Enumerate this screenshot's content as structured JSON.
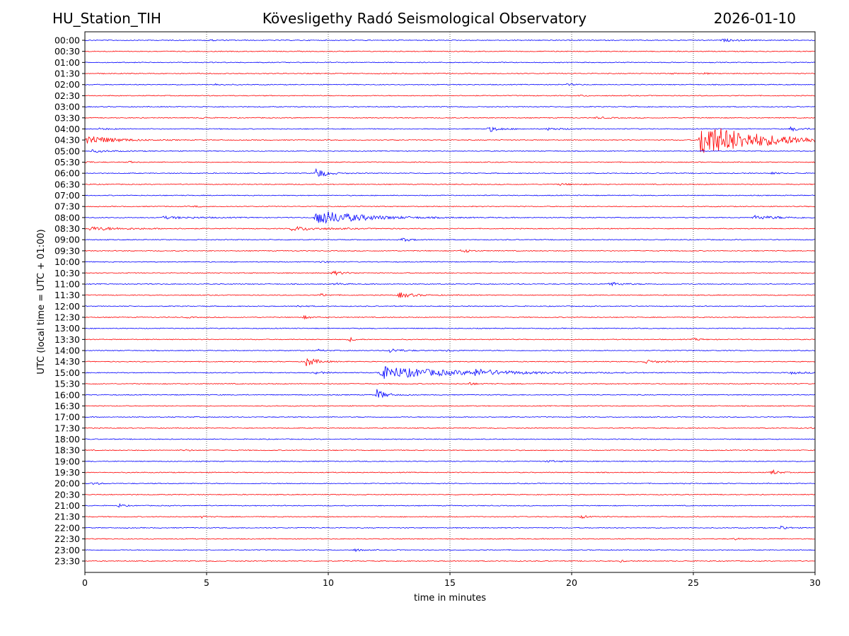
{
  "header": {
    "station": "HU_Station_TIH",
    "observatory": "Kövesligethy Radó Seismological Observatory",
    "date": "2026-01-10"
  },
  "chart_data": {
    "type": "line",
    "title": "Kövesligethy Radó Seismological Observatory",
    "xlabel": "time in minutes",
    "ylabel": "UTC (local time = UTC + 01:00)",
    "xlim": [
      0,
      30
    ],
    "x_ticks": [
      "0",
      "5",
      "10",
      "15",
      "20",
      "25",
      "30"
    ],
    "grid": "vertical dotted at every 5 minutes",
    "colors": {
      "even_rows": "#0000ff",
      "odd_rows": "#ff0000"
    },
    "rows": [
      "00:00",
      "00:30",
      "01:00",
      "01:30",
      "02:00",
      "02:30",
      "03:00",
      "03:30",
      "04:00",
      "04:30",
      "05:00",
      "05:30",
      "06:00",
      "06:30",
      "07:00",
      "07:30",
      "08:00",
      "08:30",
      "09:00",
      "09:30",
      "10:00",
      "10:30",
      "11:00",
      "11:30",
      "12:00",
      "12:30",
      "13:00",
      "13:30",
      "14:00",
      "14:30",
      "15:00",
      "15:30",
      "16:00",
      "16:30",
      "17:00",
      "17:30",
      "18:00",
      "18:30",
      "19:00",
      "19:30",
      "20:00",
      "20:30",
      "21:00",
      "21:30",
      "22:00",
      "22:30",
      "23:00",
      "23:30"
    ],
    "events": [
      {
        "row": 0,
        "minute": 5.0,
        "amp": 0.4,
        "dur": 0.6
      },
      {
        "row": 0,
        "minute": 26.2,
        "amp": 0.5,
        "dur": 1.2
      },
      {
        "row": 3,
        "minute": 24.0,
        "amp": 0.3,
        "dur": 0.3
      },
      {
        "row": 3,
        "minute": 25.4,
        "amp": 0.4,
        "dur": 0.3
      },
      {
        "row": 4,
        "minute": 5.3,
        "amp": 0.4,
        "dur": 0.6
      },
      {
        "row": 4,
        "minute": 19.8,
        "amp": 0.3,
        "dur": 0.8
      },
      {
        "row": 5,
        "minute": 20.3,
        "amp": 0.3,
        "dur": 0.6
      },
      {
        "row": 7,
        "minute": 4.8,
        "amp": 0.4,
        "dur": 0.4
      },
      {
        "row": 7,
        "minute": 21.0,
        "amp": 0.4,
        "dur": 0.9
      },
      {
        "row": 8,
        "minute": 0.6,
        "amp": 0.3,
        "dur": 1.0
      },
      {
        "row": 8,
        "minute": 16.6,
        "amp": 1.2,
        "dur": 0.8
      },
      {
        "row": 8,
        "minute": 19.0,
        "amp": 0.5,
        "dur": 1.2
      },
      {
        "row": 8,
        "minute": 29.0,
        "amp": 0.8,
        "dur": 1.0
      },
      {
        "row": 9,
        "minute": 0.1,
        "amp": 2.2,
        "dur": 2.0
      },
      {
        "row": 9,
        "minute": 25.3,
        "amp": 7.5,
        "dur": 5.0
      },
      {
        "row": 10,
        "minute": 0.3,
        "amp": 0.5,
        "dur": 1.5
      },
      {
        "row": 11,
        "minute": 0.0,
        "amp": 0.6,
        "dur": 0.3
      },
      {
        "row": 11,
        "minute": 1.8,
        "amp": 0.4,
        "dur": 0.3
      },
      {
        "row": 12,
        "minute": 9.5,
        "amp": 2.5,
        "dur": 0.7
      },
      {
        "row": 12,
        "minute": 28.2,
        "amp": 0.6,
        "dur": 0.3
      },
      {
        "row": 13,
        "minute": 19.5,
        "amp": 0.4,
        "dur": 0.9
      },
      {
        "row": 15,
        "minute": 4.5,
        "amp": 0.3,
        "dur": 0.4
      },
      {
        "row": 16,
        "minute": 3.2,
        "amp": 0.5,
        "dur": 3.0
      },
      {
        "row": 16,
        "minute": 9.5,
        "amp": 3.5,
        "dur": 3.5
      },
      {
        "row": 16,
        "minute": 27.5,
        "amp": 0.8,
        "dur": 2.5
      },
      {
        "row": 17,
        "minute": 0.2,
        "amp": 0.8,
        "dur": 3.0
      },
      {
        "row": 17,
        "minute": 8.5,
        "amp": 0.9,
        "dur": 2.5
      },
      {
        "row": 18,
        "minute": 13.0,
        "amp": 0.9,
        "dur": 0.6
      },
      {
        "row": 19,
        "minute": 15.5,
        "amp": 1.0,
        "dur": 0.5
      },
      {
        "row": 20,
        "minute": 9.6,
        "amp": 0.4,
        "dur": 0.6
      },
      {
        "row": 21,
        "minute": 10.2,
        "amp": 0.9,
        "dur": 0.8
      },
      {
        "row": 22,
        "minute": 10.3,
        "amp": 0.5,
        "dur": 0.5
      },
      {
        "row": 22,
        "minute": 21.5,
        "amp": 0.9,
        "dur": 1.0
      },
      {
        "row": 23,
        "minute": 9.7,
        "amp": 0.6,
        "dur": 0.5
      },
      {
        "row": 23,
        "minute": 12.9,
        "amp": 1.2,
        "dur": 1.2
      },
      {
        "row": 24,
        "minute": 8.7,
        "amp": 0.4,
        "dur": 0.5
      },
      {
        "row": 25,
        "minute": 9.0,
        "amp": 0.6,
        "dur": 0.6
      },
      {
        "row": 25,
        "minute": 4.2,
        "amp": 0.3,
        "dur": 0.3
      },
      {
        "row": 27,
        "minute": 10.9,
        "amp": 0.9,
        "dur": 0.3
      },
      {
        "row": 27,
        "minute": 25.0,
        "amp": 0.5,
        "dur": 0.6
      },
      {
        "row": 28,
        "minute": 9.6,
        "amp": 0.4,
        "dur": 0.5
      },
      {
        "row": 28,
        "minute": 12.5,
        "amp": 0.9,
        "dur": 1.0
      },
      {
        "row": 28,
        "minute": 14.8,
        "amp": 0.4,
        "dur": 0.8
      },
      {
        "row": 29,
        "minute": 9.1,
        "amp": 2.3,
        "dur": 0.7
      },
      {
        "row": 29,
        "minute": 23.0,
        "amp": 0.7,
        "dur": 1.2
      },
      {
        "row": 30,
        "minute": 9.5,
        "amp": 0.6,
        "dur": 0.6
      },
      {
        "row": 30,
        "minute": 12.1,
        "amp": 2.8,
        "dur": 6.0
      },
      {
        "row": 30,
        "minute": 16.0,
        "amp": 1.0,
        "dur": 2.0
      },
      {
        "row": 30,
        "minute": 29.0,
        "amp": 0.5,
        "dur": 1.0
      },
      {
        "row": 31,
        "minute": 15.8,
        "amp": 0.6,
        "dur": 0.4
      },
      {
        "row": 32,
        "minute": 12.0,
        "amp": 2.4,
        "dur": 0.6
      },
      {
        "row": 35,
        "minute": 29.8,
        "amp": 0.3,
        "dur": 0.2
      },
      {
        "row": 37,
        "minute": 4.1,
        "amp": 0.4,
        "dur": 0.4
      },
      {
        "row": 38,
        "minute": 19.0,
        "amp": 0.4,
        "dur": 1.0
      },
      {
        "row": 39,
        "minute": 28.2,
        "amp": 1.4,
        "dur": 0.4
      },
      {
        "row": 40,
        "minute": 0.3,
        "amp": 0.7,
        "dur": 0.4
      },
      {
        "row": 42,
        "minute": 1.4,
        "amp": 0.8,
        "dur": 0.3
      },
      {
        "row": 43,
        "minute": 4.7,
        "amp": 0.7,
        "dur": 0.3
      },
      {
        "row": 43,
        "minute": 20.4,
        "amp": 0.8,
        "dur": 0.3
      },
      {
        "row": 44,
        "minute": 28.6,
        "amp": 1.1,
        "dur": 0.4
      },
      {
        "row": 45,
        "minute": 26.7,
        "amp": 0.5,
        "dur": 0.3
      },
      {
        "row": 46,
        "minute": 11.1,
        "amp": 0.6,
        "dur": 0.4
      },
      {
        "row": 47,
        "minute": 22.0,
        "amp": 0.4,
        "dur": 0.3
      }
    ]
  }
}
